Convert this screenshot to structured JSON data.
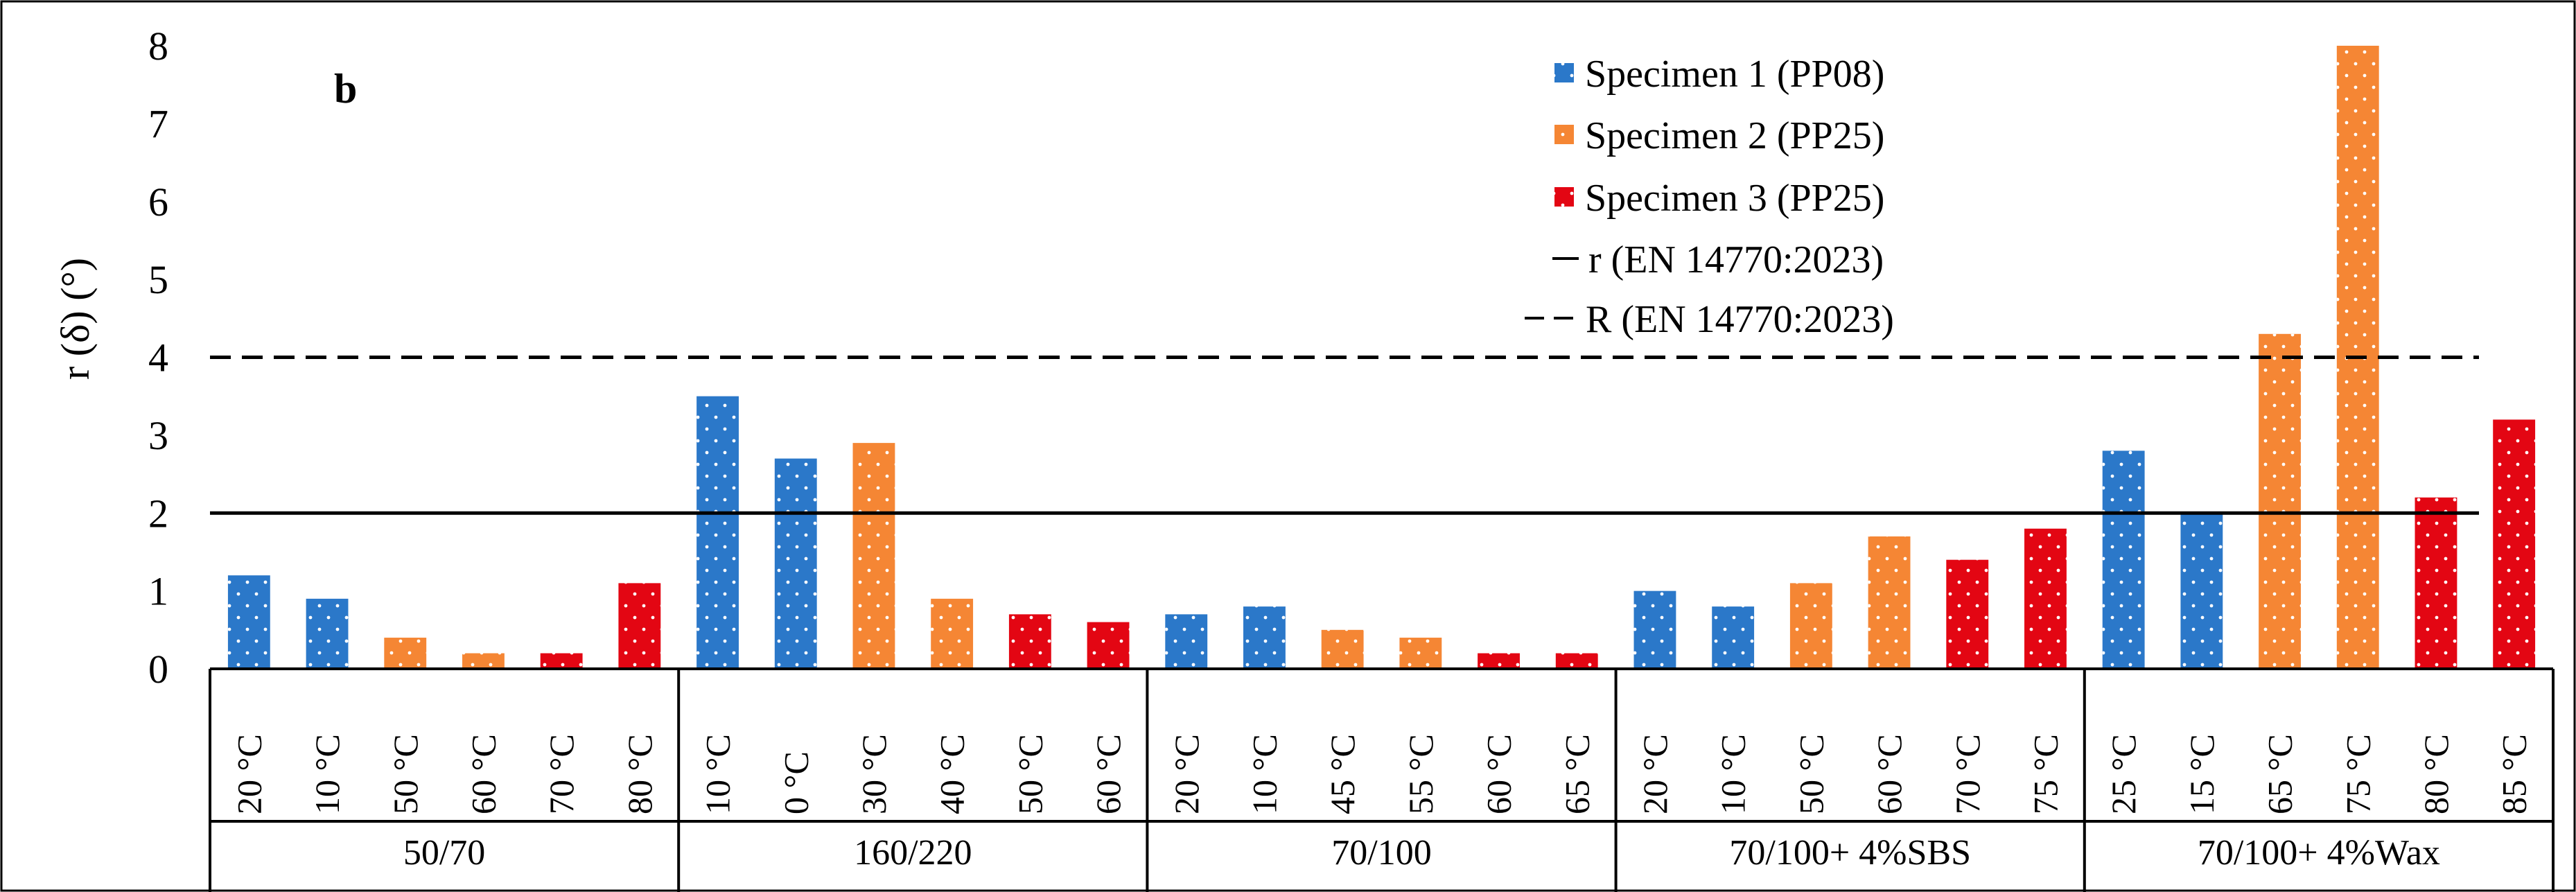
{
  "chart_data": {
    "type": "bar",
    "panel_label": "b",
    "ylabel": "r (δ) (°)",
    "ylim": [
      0,
      8
    ],
    "y_ticks": [
      "0",
      "1",
      "2",
      "3",
      "4",
      "5",
      "6",
      "7",
      "8"
    ],
    "groups": [
      {
        "name": "50/70",
        "bars": [
          {
            "label": "20 °C",
            "value": 1.2,
            "series": 0
          },
          {
            "label": "10 °C",
            "value": 0.9,
            "series": 0
          },
          {
            "label": "50 °C",
            "value": 0.4,
            "series": 1
          },
          {
            "label": "60 °C",
            "value": 0.2,
            "series": 1
          },
          {
            "label": "70 °C",
            "value": 0.2,
            "series": 2
          },
          {
            "label": "80 °C",
            "value": 1.1,
            "series": 2
          }
        ]
      },
      {
        "name": "160/220",
        "bars": [
          {
            "label": "10 °C",
            "value": 3.5,
            "series": 0
          },
          {
            "label": "0 °C",
            "value": 2.7,
            "series": 0
          },
          {
            "label": "30 °C",
            "value": 2.9,
            "series": 1
          },
          {
            "label": "40 °C",
            "value": 0.9,
            "series": 1
          },
          {
            "label": "50 °C",
            "value": 0.7,
            "series": 2
          },
          {
            "label": "60 °C",
            "value": 0.6,
            "series": 2
          }
        ]
      },
      {
        "name": "70/100",
        "bars": [
          {
            "label": "20 °C",
            "value": 0.7,
            "series": 0
          },
          {
            "label": "10 °C",
            "value": 0.8,
            "series": 0
          },
          {
            "label": "45 °C",
            "value": 0.5,
            "series": 1
          },
          {
            "label": "55 °C",
            "value": 0.4,
            "series": 1
          },
          {
            "label": "60 °C",
            "value": 0.2,
            "series": 2
          },
          {
            "label": "65 °C",
            "value": 0.2,
            "series": 2
          }
        ]
      },
      {
        "name": "70/100+ 4%SBS",
        "bars": [
          {
            "label": "20 °C",
            "value": 1.0,
            "series": 0
          },
          {
            "label": "10 °C",
            "value": 0.8,
            "series": 0
          },
          {
            "label": "50 °C",
            "value": 1.1,
            "series": 1
          },
          {
            "label": "60 °C",
            "value": 1.7,
            "series": 1
          },
          {
            "label": "70 °C",
            "value": 1.4,
            "series": 2
          },
          {
            "label": "75 °C",
            "value": 1.8,
            "series": 2
          }
        ]
      },
      {
        "name": "70/100+ 4%Wax",
        "bars": [
          {
            "label": "25 °C",
            "value": 2.8,
            "series": 0
          },
          {
            "label": "15 °C",
            "value": 2.0,
            "series": 0
          },
          {
            "label": "65 °C",
            "value": 4.3,
            "series": 1
          },
          {
            "label": "75 °C",
            "value": 8.0,
            "series": 1
          },
          {
            "label": "80 °C",
            "value": 2.2,
            "series": 2
          },
          {
            "label": "85 °C",
            "value": 3.2,
            "series": 2
          }
        ]
      }
    ],
    "series": [
      {
        "name": "Specimen 1 (PP08)",
        "color": "#2b78c9"
      },
      {
        "name": "Specimen 2 (PP25)",
        "color": "#f58634"
      },
      {
        "name": "Specimen 3 (PP25)",
        "color": "#e30613"
      }
    ],
    "reference_lines": [
      {
        "name": "r (EN 14770:2023)",
        "value": 2,
        "style": "solid"
      },
      {
        "name": "R (EN 14770:2023)",
        "value": 4,
        "style": "dashed"
      }
    ],
    "legend_position": "top-right"
  }
}
